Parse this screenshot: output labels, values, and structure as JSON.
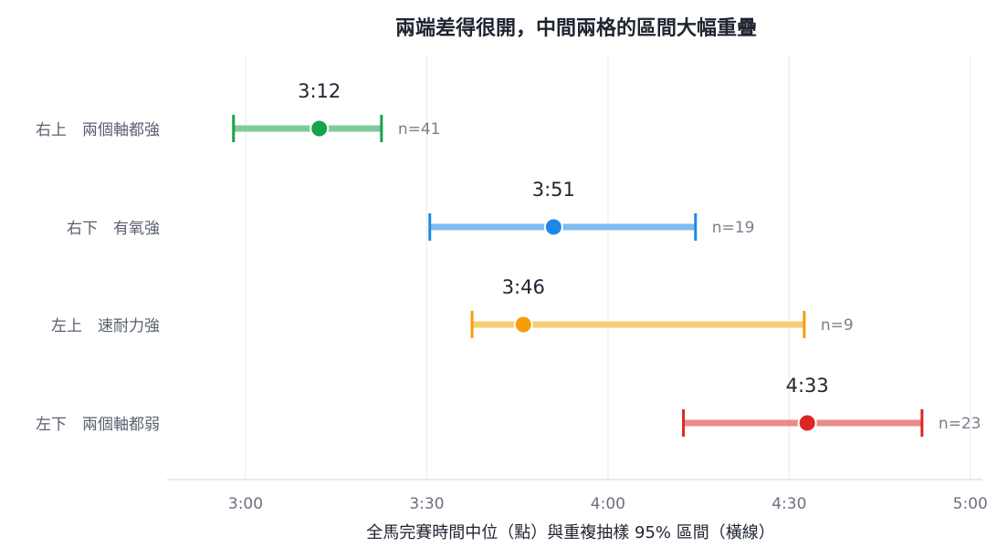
{
  "chart_data": {
    "type": "interval",
    "title": "兩端差得很開，中間兩格的區間大幅重疊",
    "xlabel": "全馬完賽時間中位（點）與重複抽樣 95% 區間（橫線）",
    "ylabel": "",
    "x_unit": "minutes",
    "xlim": [
      167,
      302
    ],
    "grid": true,
    "x_ticks": [
      {
        "value": 180,
        "label": "3:00"
      },
      {
        "value": 210,
        "label": "3:30"
      },
      {
        "value": 240,
        "label": "4:00"
      },
      {
        "value": 270,
        "label": "4:30"
      },
      {
        "value": 300,
        "label": "5:00"
      }
    ],
    "categories": [
      "右上　兩個軸都強",
      "右下　有氧強",
      "左上　速耐力強",
      "左下　兩個軸都弱"
    ],
    "series": [
      {
        "category": "右上　兩個軸都強",
        "median": 192.2,
        "median_label": "3:12",
        "low": 178.0,
        "high": 202.5,
        "n_label": "n=41",
        "color": "#16a34a",
        "bar_color": "#7fcb9a"
      },
      {
        "category": "右下　有氧強",
        "median": 231.0,
        "median_label": "3:51",
        "low": 210.5,
        "high": 254.5,
        "n_label": "n=19",
        "color": "#1e88e5",
        "bar_color": "#7dbdf3"
      },
      {
        "category": "左上　速耐力強",
        "median": 226.0,
        "median_label": "3:46",
        "low": 217.5,
        "high": 272.5,
        "n_label": "n=9",
        "color": "#f59e0b",
        "bar_color": "#f6cd74"
      },
      {
        "category": "左下　兩個軸都弱",
        "median": 273.0,
        "median_label": "4:33",
        "low": 252.5,
        "high": 292.0,
        "n_label": "n=23",
        "color": "#dc2626",
        "bar_color": "#eb8a8a"
      }
    ]
  }
}
